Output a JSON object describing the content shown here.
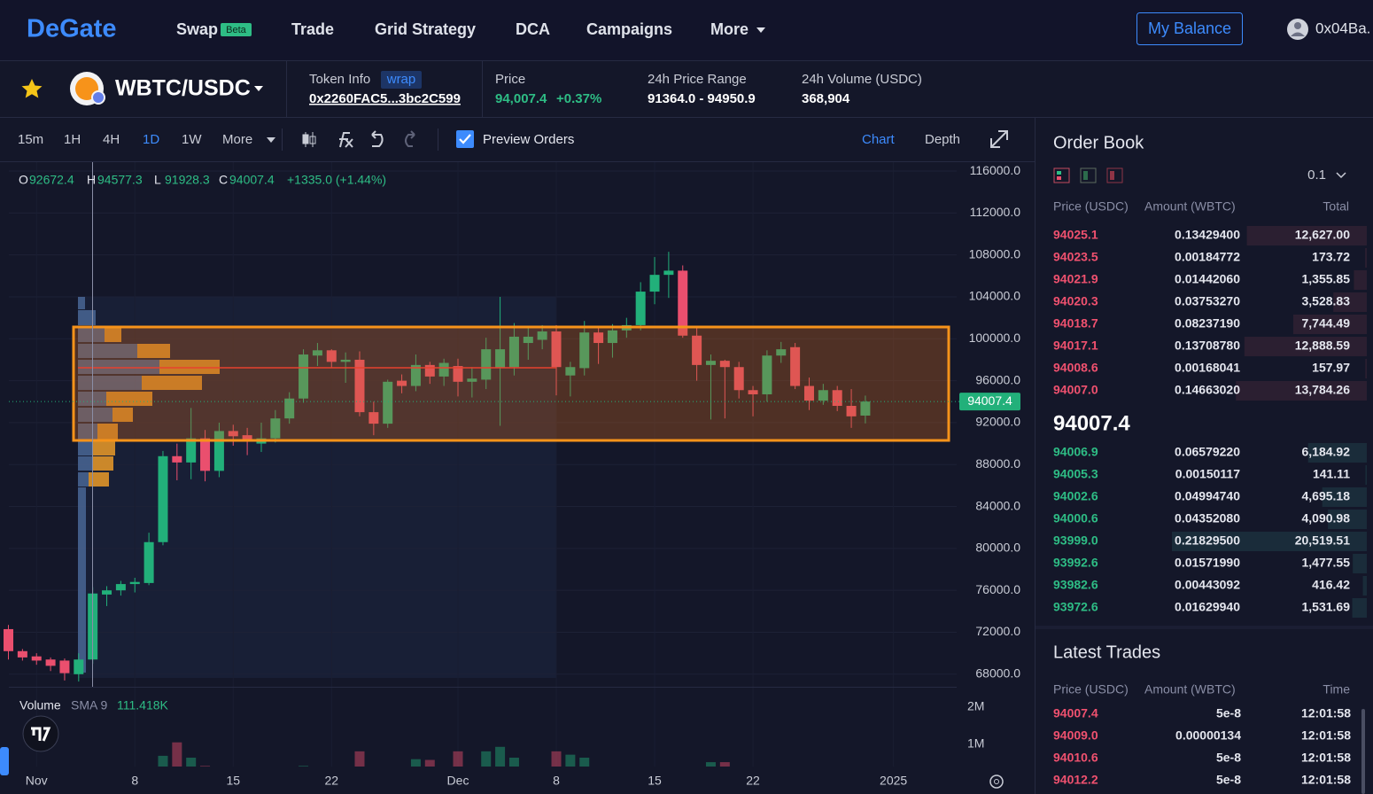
{
  "nav": {
    "logo": "DeGate",
    "items": [
      "Swap",
      "Trade",
      "Grid Strategy",
      "DCA",
      "Campaigns",
      "More"
    ],
    "badge": "Beta",
    "balance_button": "My Balance",
    "account": "0x04Ba."
  },
  "pair": {
    "symbol": "WBTC/USDC",
    "token_info_label": "Token Info",
    "token_tag": "wrap",
    "token_address": "0x2260FAC5...3bc2C599",
    "price_label": "Price",
    "price": "94,007.4",
    "change": "+0.37%",
    "range_label": "24h Price Range",
    "range": "91364.0 - 94950.9",
    "volume_label": "24h Volume (USDC)",
    "volume": "368,904"
  },
  "toolbar": {
    "intervals": [
      "15m",
      "1H",
      "4H",
      "1D",
      "1W",
      "More"
    ],
    "active_interval": 3,
    "preview_orders": "Preview Orders",
    "views": [
      "Chart",
      "Depth"
    ],
    "active_view": 0
  },
  "chart_data": {
    "type": "candlestick",
    "legend": {
      "open_label": "O",
      "open": "92672.4",
      "high_label": "H",
      "high": "94577.3",
      "low_label": "L",
      "low": "91928.3",
      "close_label": "C",
      "close": "94007.4",
      "change": "+1335.0 (+1.44%)"
    },
    "up_color": "#22b07a",
    "down_color": "#ea4f6e",
    "grid": true,
    "open": [
      72300,
      70200,
      69700,
      69400,
      69300,
      68000,
      69400,
      75600,
      76000,
      76600,
      76700,
      80600,
      88800,
      88200,
      90500,
      87400,
      91200,
      90800,
      90000,
      90500,
      92400,
      94300,
      98400,
      98900,
      97800,
      98000,
      93000,
      91900,
      96000,
      95500,
      97500,
      96400,
      97400,
      95900,
      96100,
      97200,
      97300,
      99600,
      99900,
      100700,
      96500,
      97200,
      100600,
      99600,
      100800,
      101300,
      104500,
      106100,
      106500,
      100300,
      97500,
      97900,
      97300,
      95100,
      94700,
      98400,
      99200,
      95500,
      94100,
      95100,
      93600,
      92672.4
    ],
    "high": [
      72700,
      70400,
      70000,
      69600,
      69500,
      70000,
      76300,
      76400,
      76900,
      77200,
      81500,
      89300,
      90000,
      93400,
      91300,
      92000,
      91800,
      91500,
      92000,
      93200,
      94900,
      99000,
      99600,
      99000,
      98700,
      98800,
      94000,
      96100,
      96600,
      98500,
      97800,
      98100,
      98100,
      97300,
      100100,
      104000,
      101500,
      101000,
      101300,
      101300,
      97800,
      101700,
      101200,
      101400,
      102000,
      105400,
      107800,
      108300,
      107000,
      101000,
      98500,
      98000,
      97800,
      95500,
      98900,
      99700,
      99600,
      96300,
      95700,
      95500,
      95200,
      94577.3
    ],
    "low": [
      69400,
      69300,
      68900,
      68300,
      67400,
      67300,
      69000,
      74500,
      75500,
      75800,
      76500,
      80300,
      86500,
      86600,
      86400,
      86800,
      89800,
      88900,
      89200,
      90100,
      91900,
      93900,
      97400,
      97200,
      95800,
      92600,
      90800,
      91500,
      94800,
      95000,
      95700,
      95500,
      94500,
      94400,
      95200,
      91700,
      96500,
      98000,
      99000,
      94600,
      94500,
      96500,
      97600,
      98200,
      100100,
      100800,
      103300,
      103900,
      100100,
      96000,
      92300,
      92400,
      94300,
      92600,
      94000,
      97700,
      95200,
      93200,
      93700,
      93100,
      91500,
      91928.3
    ],
    "close": [
      70200,
      69600,
      69300,
      68800,
      68100,
      69400,
      75700,
      76000,
      76600,
      76800,
      80600,
      88800,
      88200,
      90500,
      87400,
      91200,
      90700,
      90300,
      90500,
      92400,
      94300,
      98500,
      98900,
      97800,
      98000,
      93000,
      91900,
      95900,
      95500,
      97500,
      96400,
      97700,
      95900,
      96200,
      99000,
      99000,
      100200,
      100200,
      100700,
      97300,
      97300,
      100600,
      99600,
      100800,
      101300,
      104500,
      106100,
      106500,
      100300,
      97500,
      97900,
      97300,
      95100,
      94700,
      98400,
      99000,
      95500,
      94100,
      95100,
      93600,
      92600,
      94007.4
    ],
    "volume": [
      200000,
      180000,
      150000,
      160000,
      220000,
      350000,
      380000,
      330000,
      310000,
      280000,
      360000,
      690000,
      1050000,
      640000,
      420000,
      380000,
      300000,
      260000,
      240000,
      330000,
      350000,
      420000,
      380000,
      320000,
      260000,
      810000,
      380000,
      360000,
      300000,
      600000,
      580000,
      320000,
      810000,
      340000,
      810000,
      930000,
      640000,
      360000,
      300000,
      810000,
      720000,
      640000,
      380000,
      340000,
      300000,
      330000,
      390000,
      360000,
      400000,
      380000,
      520000,
      520000,
      340000,
      300000,
      330000,
      280000,
      310000,
      300000,
      260000,
      240000,
      280000,
      200000
    ],
    "last_price": 94007.4,
    "ylim": [
      66800,
      116850
    ],
    "yticks": [
      {
        "value": 68000,
        "label": "68000.0"
      },
      {
        "value": 72000,
        "label": "72000.0"
      },
      {
        "value": 76000,
        "label": "76000.0"
      },
      {
        "value": 80000,
        "label": "80000.0"
      },
      {
        "value": 84000,
        "label": "84000.0"
      },
      {
        "value": 88000,
        "label": "88000.0"
      },
      {
        "value": 92000,
        "label": "92000.0"
      },
      {
        "value": 96000,
        "label": "96000.0"
      },
      {
        "value": 100000,
        "label": "100000.0"
      },
      {
        "value": 104000,
        "label": "104000.0"
      },
      {
        "value": 108000,
        "label": "108000.0"
      },
      {
        "value": 112000,
        "label": "112000.0"
      },
      {
        "value": 116000,
        "label": "116000.0"
      }
    ],
    "xlim": [
      -0.6,
      67.5
    ],
    "xticks": [
      {
        "value": 2,
        "label": "Nov"
      },
      {
        "value": 9,
        "label": "8"
      },
      {
        "value": 16,
        "label": "15"
      },
      {
        "value": 23,
        "label": "22"
      },
      {
        "value": 32,
        "label": "Dec"
      },
      {
        "value": 39,
        "label": "8"
      },
      {
        "value": 46,
        "label": "15"
      },
      {
        "value": 53,
        "label": "22"
      },
      {
        "value": 63,
        "label": "2025"
      }
    ],
    "y2lim": [
      0,
      2300000
    ],
    "y2ticks": [
      {
        "value": 1000000,
        "label": "1M"
      },
      {
        "value": 2000000,
        "label": "2M"
      }
    ],
    "volume_title": "Volume",
    "volume_sma": "SMA 9",
    "volume_sma_value": "111.418K"
  },
  "order_book": {
    "title": "Order Book",
    "precision": "0.1",
    "headers": [
      "Price (USDC)",
      "Amount (WBTC)",
      "Total"
    ],
    "asks": [
      [
        "94025.1",
        "0.13429400",
        "12,627.00"
      ],
      [
        "94023.5",
        "0.00184772",
        "173.72"
      ],
      [
        "94021.9",
        "0.01442060",
        "1,355.85"
      ],
      [
        "94020.3",
        "0.03753270",
        "3,528.83"
      ],
      [
        "94018.7",
        "0.08237190",
        "7,744.49"
      ],
      [
        "94017.1",
        "0.13708780",
        "12,888.59"
      ],
      [
        "94008.6",
        "0.00168041",
        "157.97"
      ],
      [
        "94007.0",
        "0.14663020",
        "13,784.26"
      ]
    ],
    "mid_price": "94007.4",
    "bids": [
      [
        "94006.9",
        "0.06579220",
        "6,184.92"
      ],
      [
        "94005.3",
        "0.00150117",
        "141.11"
      ],
      [
        "94002.6",
        "0.04994740",
        "4,695.18"
      ],
      [
        "94000.6",
        "0.04352080",
        "4,090.98"
      ],
      [
        "93999.0",
        "0.21829500",
        "20,519.51"
      ],
      [
        "93992.6",
        "0.01571990",
        "1,477.55"
      ],
      [
        "93982.6",
        "0.00443092",
        "416.42"
      ],
      [
        "93972.6",
        "0.01629940",
        "1,531.69"
      ]
    ]
  },
  "latest_trades": {
    "title": "Latest Trades",
    "headers": [
      "Price (USDC)",
      "Amount (WBTC)",
      "Time"
    ],
    "rows": [
      [
        "94007.4",
        "5e-8",
        "12:01:58"
      ],
      [
        "94009.0",
        "0.00000134",
        "12:01:58"
      ],
      [
        "94010.6",
        "5e-8",
        "12:01:58"
      ],
      [
        "94012.2",
        "5e-8",
        "12:01:58"
      ]
    ]
  }
}
